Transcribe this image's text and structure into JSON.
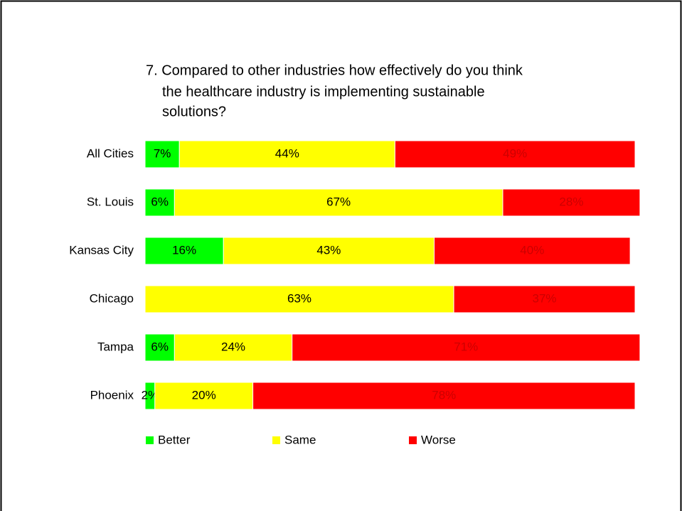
{
  "chart_data": {
    "type": "stacked-bar-horizontal",
    "title": [
      "7. Compared to other industries how effectively do you think",
      "the healthcare industry is implementing sustainable",
      "solutions?"
    ],
    "categories": [
      "All Cities",
      "St. Louis",
      "Kansas City",
      "Chicago",
      "Tampa",
      "Phoenix"
    ],
    "xlim": [
      0,
      100
    ],
    "legend": "bottom",
    "series": [
      {
        "name": "Better",
        "color": "#00ff00",
        "label_color": "#000000",
        "values": [
          7,
          6,
          16,
          null,
          6,
          2
        ],
        "value_labels": [
          "7%",
          "6%",
          "16%",
          null,
          "6%",
          "2%"
        ]
      },
      {
        "name": "Same",
        "color": "#ffff00",
        "label_color": "#000000",
        "values": [
          44,
          67,
          43,
          63,
          24,
          20
        ],
        "value_labels": [
          "44%",
          "67%",
          "43%",
          "63%",
          "24%",
          "20%"
        ]
      },
      {
        "name": "Worse",
        "color": "#ff0000",
        "label_color": "#cc0000",
        "values": [
          49,
          28,
          40,
          37,
          71,
          78
        ],
        "value_labels": [
          "49%",
          "28%",
          "40%",
          "37%",
          "71%",
          "78%"
        ]
      }
    ]
  }
}
